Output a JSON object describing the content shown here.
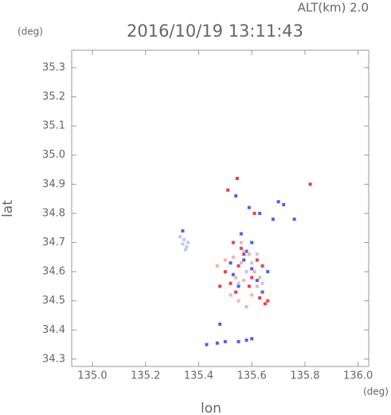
{
  "chart_data": {
    "type": "scatter",
    "title": "2016/10/19 13:11:43",
    "subtitle": "ALT(km) 2.0",
    "y_unit": "(deg)",
    "x_unit": "(deg)",
    "xlabel": "lon",
    "ylabel": "lat",
    "xlim": [
      134.922,
      136.04
    ],
    "ylim": [
      34.275,
      35.36
    ],
    "xticks": [
      {
        "value": 135,
        "label": "135.0"
      },
      135.2,
      135.4,
      135.6,
      135.8,
      {
        "value": 136,
        "label": "136.0"
      }
    ],
    "yticks": [
      34.3,
      34.4,
      34.5,
      34.6,
      34.7,
      34.8,
      34.9,
      {
        "value": 35,
        "label": "35.0"
      },
      35.1,
      35.2,
      35.3
    ],
    "series": [
      {
        "color": "#e8404a",
        "x": [
          135.55,
          135.58,
          135.6,
          135.52,
          135.62,
          135.57,
          135.54,
          135.63,
          135.65,
          135.66,
          135.5,
          135.59,
          135.53,
          135.64,
          135.56,
          135.51,
          135.82,
          135.545,
          135.61,
          135.48
        ],
        "y": [
          34.62,
          34.6,
          34.58,
          34.56,
          34.64,
          34.66,
          34.53,
          34.51,
          34.49,
          34.5,
          34.6,
          34.55,
          34.7,
          34.62,
          34.68,
          34.88,
          34.9,
          34.92,
          34.8,
          34.55
        ]
      },
      {
        "color": "#5060e0",
        "x": [
          135.57,
          135.6,
          135.53,
          135.62,
          135.55,
          135.64,
          135.58,
          135.52,
          135.66,
          135.6,
          135.56,
          135.68,
          135.7,
          135.54,
          135.59,
          135.63,
          135.43,
          135.47,
          135.5,
          135.55,
          135.58,
          135.6,
          135.72,
          135.76,
          135.34,
          135.48
        ],
        "y": [
          34.64,
          34.61,
          34.59,
          34.57,
          34.55,
          34.53,
          34.67,
          34.63,
          34.6,
          34.7,
          34.73,
          34.78,
          34.84,
          34.86,
          34.82,
          34.8,
          34.35,
          34.355,
          34.36,
          34.36,
          34.365,
          34.37,
          34.83,
          34.78,
          34.74,
          34.42
        ]
      },
      {
        "color": "#f4b0b0",
        "x": [
          135.53,
          135.56,
          135.59,
          135.61,
          135.54,
          135.57,
          135.62,
          135.52,
          135.6,
          135.55,
          135.58,
          135.5,
          135.47,
          135.63,
          135.56
        ],
        "y": [
          34.65,
          34.63,
          34.66,
          34.6,
          34.58,
          34.57,
          34.55,
          34.52,
          34.52,
          34.5,
          34.48,
          34.64,
          34.62,
          34.58,
          34.7
        ]
      },
      {
        "color": "#c0c8f0",
        "x": [
          135.33,
          135.345,
          135.36,
          135.34,
          135.355,
          135.35,
          135.6,
          135.58,
          135.62,
          135.55,
          135.64,
          135.57
        ],
        "y": [
          34.72,
          34.71,
          34.7,
          34.695,
          34.685,
          34.675,
          34.63,
          34.6,
          34.66,
          34.56,
          34.56,
          34.67
        ]
      }
    ]
  }
}
